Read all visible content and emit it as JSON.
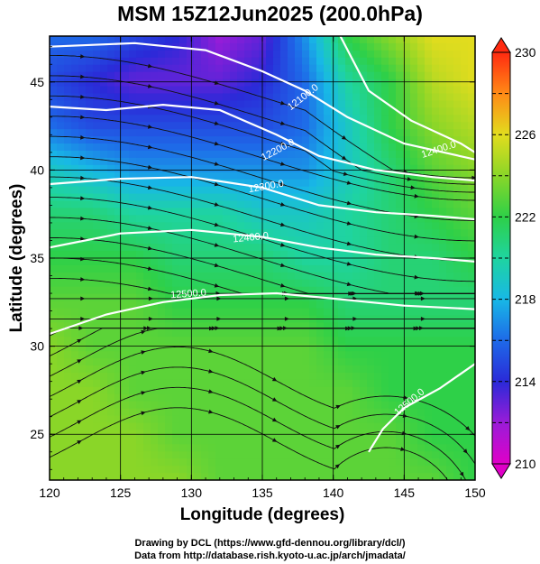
{
  "chart_data": {
    "type": "heatmap",
    "title": "MSM 15Z12Jun2025 (200.0hPa)",
    "xlabel": "Longitude (degrees)",
    "ylabel": "Latitude  (degrees)",
    "xlim": [
      120,
      150
    ],
    "ylim": [
      22.4,
      47.6
    ],
    "x_ticks": [
      "120",
      "125",
      "130",
      "135",
      "140",
      "145",
      "150"
    ],
    "y_ticks": [
      "25",
      "30",
      "35",
      "40",
      "45"
    ],
    "grid": true,
    "colorbar": {
      "range": [
        210,
        230
      ],
      "tick_labels": [
        "210",
        "214",
        "218",
        "222",
        "226",
        "230"
      ],
      "placement": "right"
    },
    "contour_labels": [
      "12100.0",
      "12200.0",
      "12300.0",
      "12400.0",
      "12500.0",
      "12400.0",
      "12500.0"
    ],
    "field": {
      "description_of_colors": "",
      "sample_grid_values": [
        [
          216,
          216,
          215,
          214,
          212,
          213,
          217,
          222,
          224,
          226,
          226
        ],
        [
          215,
          214,
          213,
          213,
          213,
          214,
          216,
          220,
          222,
          225,
          226
        ],
        [
          216,
          215,
          215,
          215,
          215,
          215,
          216,
          219,
          222,
          224,
          225
        ],
        [
          219,
          218,
          217,
          217,
          217,
          217,
          217,
          219,
          221,
          223,
          224
        ],
        [
          221,
          221,
          220,
          220,
          220,
          219,
          219,
          220,
          221,
          222,
          223
        ],
        [
          222,
          222,
          222,
          221,
          221,
          221,
          220,
          220,
          221,
          221,
          222
        ],
        [
          223,
          223,
          223,
          222,
          222,
          222,
          222,
          221,
          221,
          221,
          221
        ],
        [
          224,
          223,
          223,
          223,
          223,
          223,
          223,
          222,
          222,
          222,
          222
        ],
        [
          224,
          224,
          223,
          223,
          223,
          223,
          223,
          223,
          222,
          222,
          222
        ],
        [
          224,
          224,
          224,
          223,
          223,
          223,
          223,
          223,
          223,
          222,
          222
        ],
        [
          224,
          224,
          224,
          224,
          223,
          223,
          223,
          223,
          223,
          223,
          222
        ]
      ]
    }
  },
  "credits": {
    "line1": "Drawing by DCL (https://www.gfd-dennou.org/library/dcl/)",
    "line2": "Data from http://database.rish.kyoto-u.ac.jp/arch/jmadata/"
  }
}
